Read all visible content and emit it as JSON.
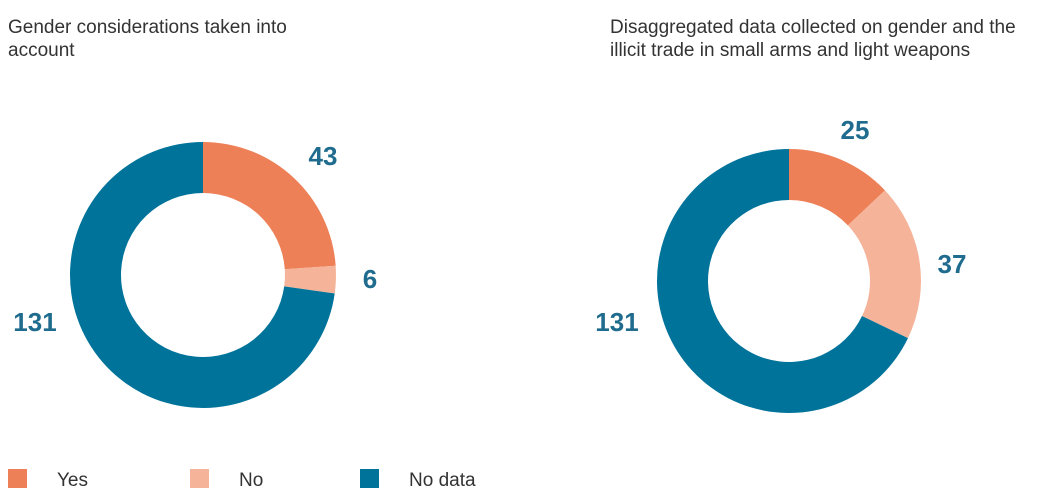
{
  "legend": [
    {
      "label": "Yes",
      "color": "#ee8058"
    },
    {
      "label": "No",
      "color": "#f5b49a"
    },
    {
      "label": "No data",
      "color": "#00739a"
    }
  ],
  "chart_data": [
    {
      "type": "pie",
      "title": "Gender considerations taken into account",
      "categories": [
        "Yes",
        "No",
        "No data"
      ],
      "values": [
        43,
        6,
        131
      ],
      "value_labels": [
        "43",
        "6",
        "131"
      ],
      "colors": [
        "#ee8058",
        "#f5b49a",
        "#00739a"
      ]
    },
    {
      "type": "pie",
      "title": "Disaggregated data collected on gender and the illicit trade in small arms and light weapons",
      "categories": [
        "Yes",
        "No",
        "No data"
      ],
      "values": [
        25,
        37,
        131
      ],
      "value_labels": [
        "25",
        "37",
        "131"
      ],
      "colors": [
        "#ee8058",
        "#f5b49a",
        "#00739a"
      ]
    }
  ]
}
